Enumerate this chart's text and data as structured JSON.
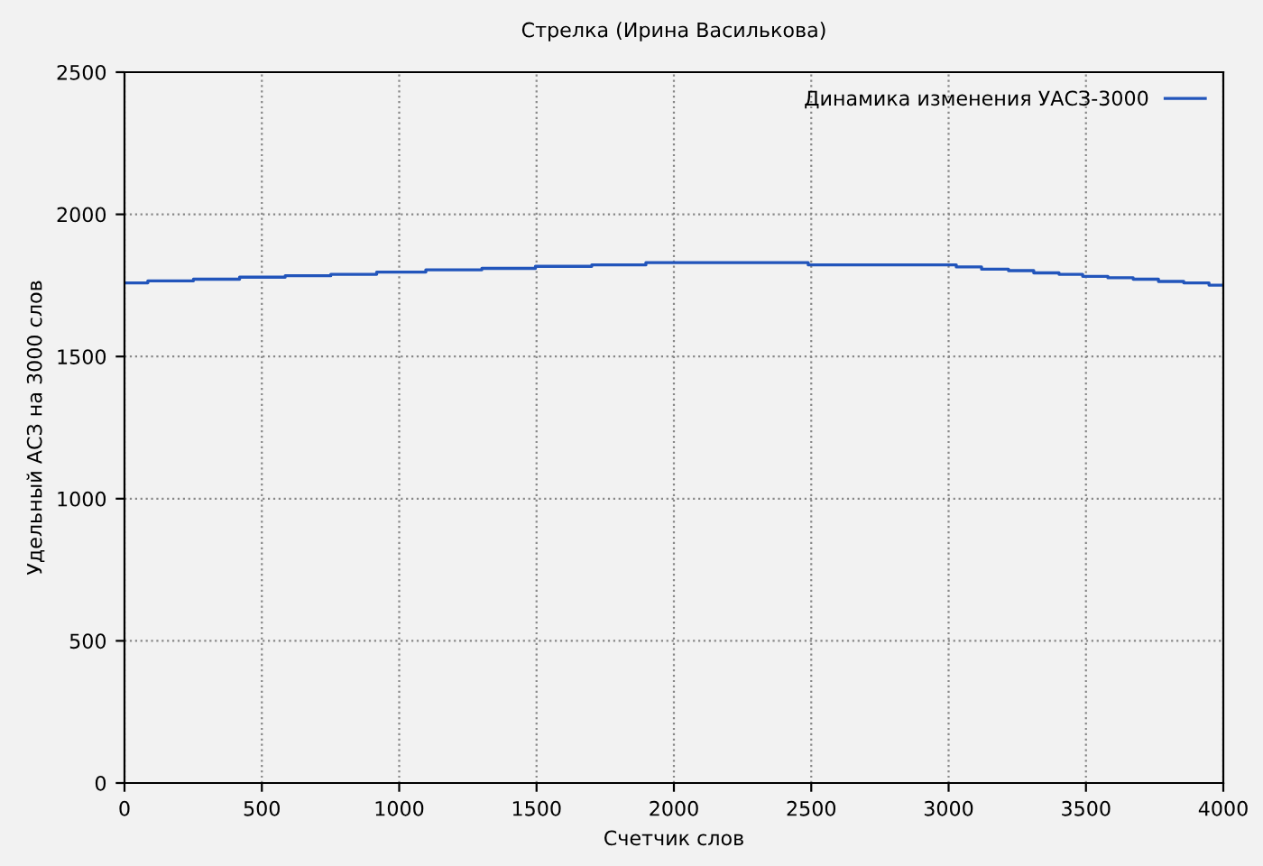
{
  "chart_data": {
    "type": "step",
    "title": "Стрелка (Ирина Василькова)",
    "xlabel": "Счетчик слов",
    "ylabel": "Удельный АСЗ на 3000 слов",
    "series": [
      {
        "name": "Динамика изменения УАСЗ-3000",
        "color": "#2255bb",
        "x": [
          0,
          85,
          251,
          419,
          585,
          751,
          918,
          1097,
          1301,
          1496,
          1701,
          1898,
          2489,
          3028,
          3120,
          3218,
          3310,
          3402,
          3488,
          3580,
          3672,
          3764,
          3856,
          3948,
          4000
        ],
        "values": [
          1759,
          1766,
          1772,
          1779,
          1784,
          1789,
          1797,
          1805,
          1810,
          1817,
          1822,
          1830,
          1822,
          1815,
          1807,
          1802,
          1794,
          1789,
          1782,
          1777,
          1772,
          1764,
          1759,
          1751,
          1751
        ]
      }
    ],
    "xlim": [
      0,
      4000
    ],
    "xticks": [
      0,
      500,
      1000,
      1500,
      2000,
      2500,
      3000,
      3500,
      4000
    ],
    "ylim": [
      0,
      2500
    ],
    "yticks": [
      0,
      500,
      1000,
      1500,
      2000,
      2500
    ],
    "grid": true,
    "legend": "top right",
    "line_style": "solid",
    "marker": "none"
  }
}
